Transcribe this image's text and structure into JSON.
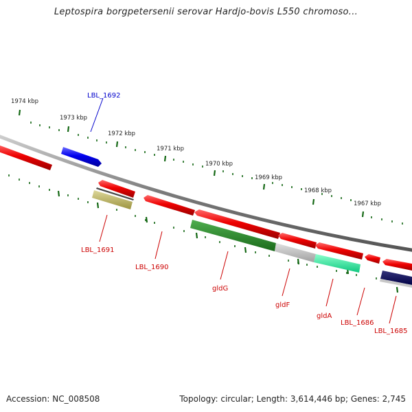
{
  "title": "Leptospira borgpetersenii serovar Hardjo-bovis L550 chromoso...",
  "footer": {
    "accession": "Accession: NC_008508",
    "topology": "Topology: circular; Length: 3,614,446 bp; Genes: 2,745"
  },
  "ticks": [
    "1974 kbp",
    "1973 kbp",
    "1972 kbp",
    "1971 kbp",
    "1970 kbp",
    "1969 kbp",
    "1968 kbp",
    "1967 kbp"
  ],
  "gene_labels": [
    {
      "name": "LBL_1692",
      "strand": "forward",
      "color": "#0000cc"
    },
    {
      "name": "LBL_1691",
      "strand": "reverse",
      "color": "#cc0000"
    },
    {
      "name": "LBL_1690",
      "strand": "reverse",
      "color": "#cc0000"
    },
    {
      "name": "gldG",
      "strand": "reverse",
      "color": "#cc0000"
    },
    {
      "name": "gldF",
      "strand": "reverse",
      "color": "#cc0000"
    },
    {
      "name": "gldA",
      "strand": "reverse",
      "color": "#cc0000"
    },
    {
      "name": "LBL_1686",
      "strand": "reverse",
      "color": "#cc0000"
    },
    {
      "name": "LBL_1685",
      "strand": "reverse",
      "color": "#cc0000"
    }
  ],
  "colors": {
    "cds_red": "#ee0000",
    "cds_blue": "#0000ee",
    "backbone": "#888888",
    "tick_green": "#116611",
    "cog_olive": "#b8b060",
    "cog_green": "#2e8b2e",
    "cog_gray": "#c0c0c0",
    "cog_aqua": "#22f5a0",
    "cog_navy": "#000066"
  }
}
